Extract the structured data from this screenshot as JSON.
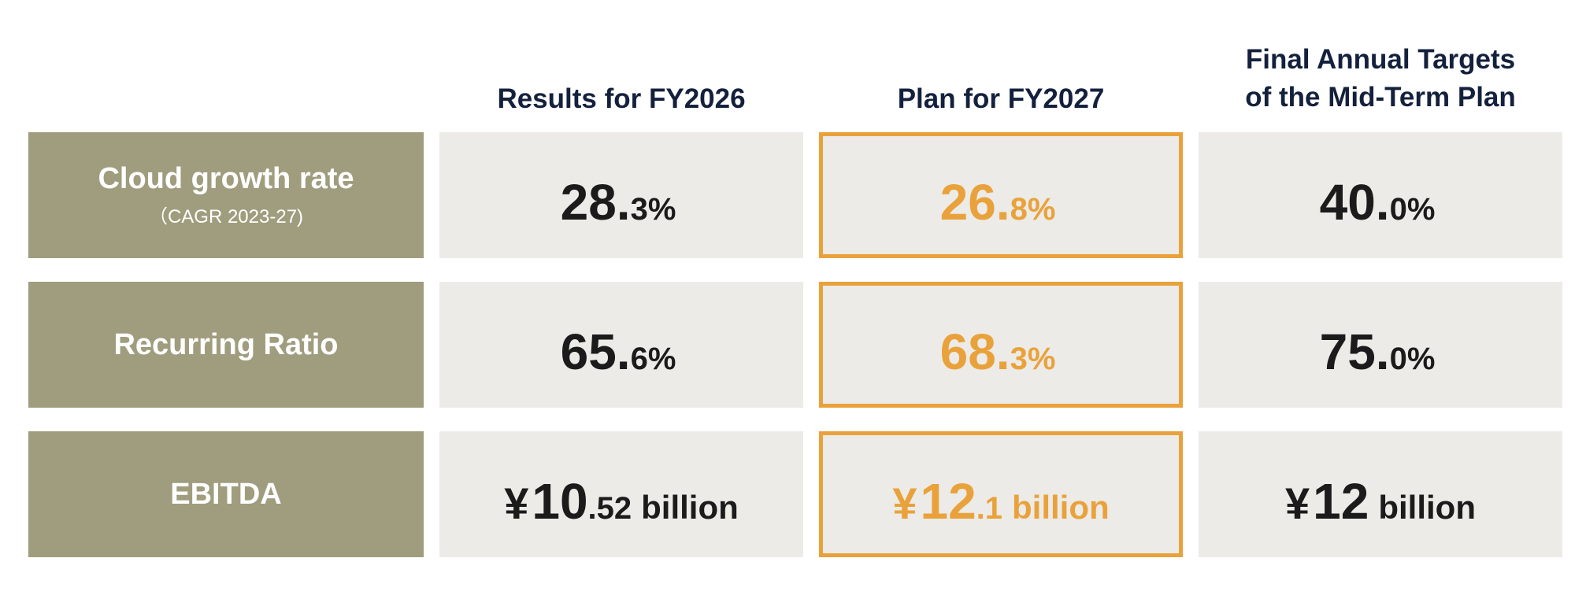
{
  "colors": {
    "label_bg": "#a09d7e",
    "cell_bg": "#ecebe7",
    "highlight": "#e9a23b",
    "header_text": "#14213d",
    "value_text": "#1b1b1b"
  },
  "headers": {
    "results": "Results for FY2026",
    "plan": "Plan for FY2027",
    "final_line1": "Final Annual Targets",
    "final_line2": "of the Mid-Term Plan"
  },
  "rows": [
    {
      "label": "Cloud growth rate",
      "sublabel": "（CAGR 2023-27)",
      "results": {
        "prefix": "",
        "int": "28.",
        "dec": "3%",
        "unit": ""
      },
      "plan": {
        "prefix": "",
        "int": "26.",
        "dec": "8%",
        "unit": ""
      },
      "final": {
        "prefix": "",
        "int": "40.",
        "dec": "0%",
        "unit": ""
      }
    },
    {
      "label": "Recurring Ratio",
      "sublabel": "",
      "results": {
        "prefix": "",
        "int": "65.",
        "dec": "6%",
        "unit": ""
      },
      "plan": {
        "prefix": "",
        "int": "68.",
        "dec": "3%",
        "unit": ""
      },
      "final": {
        "prefix": "",
        "int": "75.",
        "dec": "0%",
        "unit": ""
      }
    },
    {
      "label": "EBITDA",
      "sublabel": "",
      "results": {
        "prefix": "¥",
        "int": "10",
        "dec": ".52",
        "unit": "billion"
      },
      "plan": {
        "prefix": "¥",
        "int": "12",
        "dec": ".1",
        "unit": "billion"
      },
      "final": {
        "prefix": "¥",
        "int": "12",
        "dec": "",
        "unit": "billion"
      }
    }
  ]
}
